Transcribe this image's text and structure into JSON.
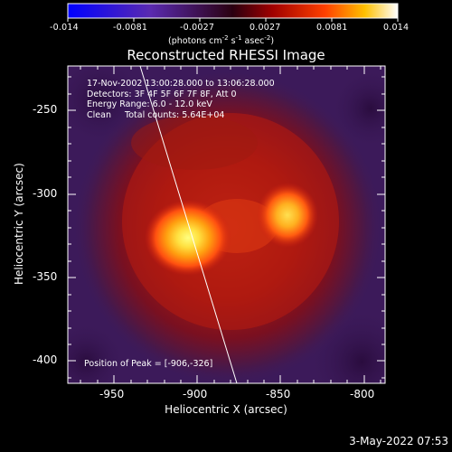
{
  "colorbar": {
    "tick_labels": [
      "-0.014",
      "-0.0081",
      "-0.0027",
      "0.0027",
      "0.0081",
      "0.014"
    ],
    "units_parts": [
      "(photons cm",
      "-2",
      " s",
      "-1",
      " asec",
      "-2",
      ")"
    ]
  },
  "image": {
    "title": "Reconstructed RHESSI Image",
    "info_lines": [
      "17-Nov-2002 13:00:28.000 to 13:06:28.000",
      "Detectors: 3F 4F 5F 6F 7F 8F, Att 0",
      "Energy Range: 6.0 - 12.0 keV",
      "Clean     Total counts: 5.64E+04"
    ],
    "peak_text": "Position of Peak = [-906,-326]",
    "peak_position": [
      -906,
      -326
    ],
    "y_ticks": [
      "-250",
      "-300",
      "-350",
      "-400"
    ],
    "x_ticks": [
      "-950",
      "-900",
      "-850",
      "-800"
    ],
    "ylabel": "Heliocentric Y (arcsec)",
    "xlabel": "Heliocentric X (arcsec)",
    "x_range": [
      -978,
      -788
    ],
    "y_range": [
      -420,
      -230
    ]
  },
  "footer": {
    "date_stamp": "3-May-2022 07:53"
  },
  "colors": {
    "background": "#000000",
    "plot_background": "#3c1a5a",
    "limb_line": "#ffffff"
  }
}
